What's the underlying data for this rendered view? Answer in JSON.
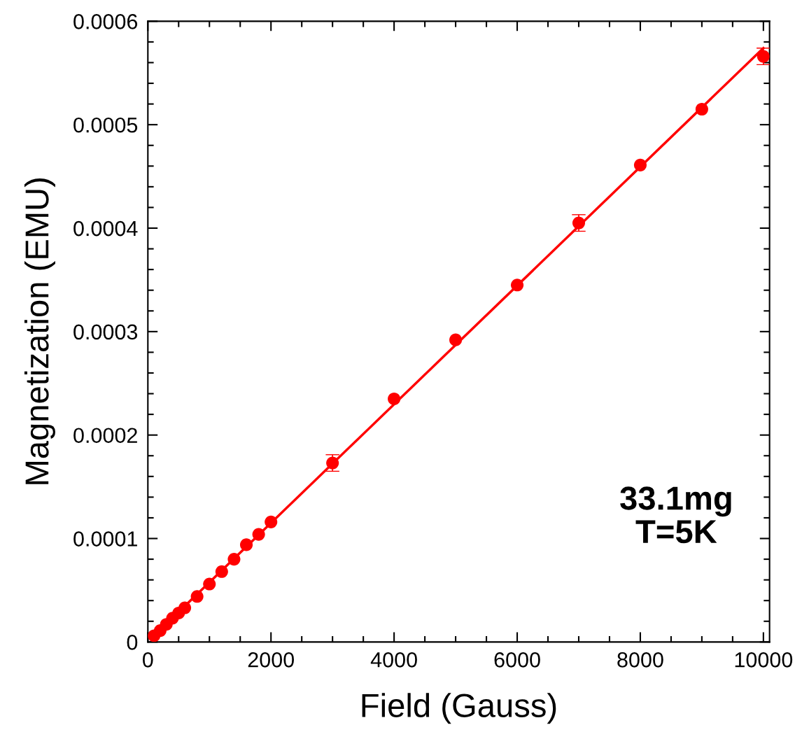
{
  "chart_data": {
    "type": "scatter",
    "xlabel": "Field (Gauss)",
    "ylabel": "Magnetization (EMU)",
    "annotations": [
      "33.1mg\nT=5K"
    ],
    "xlim": [
      0,
      10100
    ],
    "ylim": [
      0,
      0.0006
    ],
    "xticks": [
      0,
      {
        "value": 500,
        "label": null
      },
      {
        "value": 1000,
        "label": null
      },
      {
        "value": 1500,
        "label": null
      },
      2000,
      {
        "value": 2500,
        "label": null
      },
      {
        "value": 3000,
        "label": null
      },
      {
        "value": 3500,
        "label": null
      },
      4000,
      {
        "value": 4500,
        "label": null
      },
      {
        "value": 5000,
        "label": null
      },
      {
        "value": 5500,
        "label": null
      },
      6000,
      {
        "value": 6500,
        "label": null
      },
      {
        "value": 7000,
        "label": null
      },
      {
        "value": 7500,
        "label": null
      },
      8000,
      {
        "value": 8500,
        "label": null
      },
      {
        "value": 9000,
        "label": null
      },
      {
        "value": 9500,
        "label": null
      },
      10000
    ],
    "yticks": [
      0,
      {
        "value": 2e-05,
        "label": null
      },
      {
        "value": 4e-05,
        "label": null
      },
      {
        "value": 6e-05,
        "label": null
      },
      {
        "value": 8e-05,
        "label": null
      },
      0.0001,
      {
        "value": 0.00012,
        "label": null
      },
      {
        "value": 0.00014,
        "label": null
      },
      {
        "value": 0.00016,
        "label": null
      },
      {
        "value": 0.00018,
        "label": null
      },
      0.0002,
      {
        "value": 0.00022,
        "label": null
      },
      {
        "value": 0.00024,
        "label": null
      },
      {
        "value": 0.00026,
        "label": null
      },
      {
        "value": 0.00028,
        "label": null
      },
      0.0003,
      {
        "value": 0.00032,
        "label": null
      },
      {
        "value": 0.00034,
        "label": null
      },
      {
        "value": 0.00036,
        "label": null
      },
      {
        "value": 0.00038,
        "label": null
      },
      0.0004,
      {
        "value": 0.00042,
        "label": null
      },
      {
        "value": 0.00044,
        "label": null
      },
      {
        "value": 0.00046,
        "label": null
      },
      {
        "value": 0.00048,
        "label": null
      },
      0.0005,
      {
        "value": 0.00052,
        "label": null
      },
      {
        "value": 0.00054,
        "label": null
      },
      {
        "value": 0.00056,
        "label": null
      },
      {
        "value": 0.00058,
        "label": null
      },
      0.0006
    ],
    "grid": false,
    "legend": false,
    "marker": "circle",
    "series": [
      {
        "type": "line",
        "color": "#ff0000",
        "x": [
          100,
          10000
        ],
        "values": [
          6e-06,
          0.000574
        ],
        "marker": "none",
        "line_style": "solid"
      },
      {
        "color": "#ff0000",
        "x": [
          100,
          200,
          300,
          400,
          500,
          600,
          800,
          1000,
          1200,
          1400,
          1600,
          1800,
          2000,
          3000,
          4000,
          5000,
          6000,
          7000,
          8000,
          9000,
          10000
        ],
        "values": [
          6e-06,
          1.1e-05,
          1.7e-05,
          2.3e-05,
          2.8e-05,
          3.3e-05,
          4.4e-05,
          5.6e-05,
          6.8e-05,
          8e-05,
          9.4e-05,
          0.000104,
          0.000116,
          0.000173,
          0.000235,
          0.000292,
          0.000345,
          0.000405,
          0.000461,
          0.000515,
          0.000566
        ],
        "errors": [
          null,
          null,
          null,
          null,
          null,
          null,
          null,
          null,
          null,
          null,
          null,
          null,
          null,
          8e-06,
          null,
          null,
          null,
          8e-06,
          null,
          null,
          8e-06
        ]
      }
    ]
  }
}
